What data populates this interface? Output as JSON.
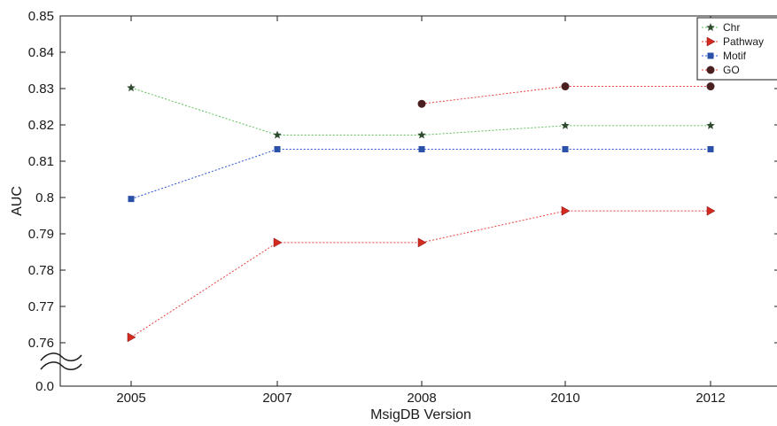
{
  "chart_data": {
    "type": "line",
    "title": "",
    "xlabel": "MsigDB Version",
    "ylabel": "AUC",
    "categories": [
      "2005",
      "2007",
      "2008",
      "2010",
      "2012"
    ],
    "y_ticks": [
      "0.85",
      "0.84",
      "0.83",
      "0.82",
      "0.81",
      "0.8",
      "0.79",
      "0.78",
      "0.77",
      "0.76"
    ],
    "y_tick_values": [
      0.85,
      0.84,
      0.83,
      0.82,
      0.81,
      0.8,
      0.79,
      0.78,
      0.77,
      0.76
    ],
    "y_break_label": "0.0",
    "ylim": [
      0.755,
      0.85
    ],
    "grid": false,
    "legend_position": "top-right",
    "series": [
      {
        "name": "Chr",
        "marker": "star",
        "color": "#5cc05c",
        "marker_color": "#2f4a2f",
        "values": [
          0.8302,
          0.8172,
          0.8172,
          0.8198,
          0.8198
        ]
      },
      {
        "name": "Pathway",
        "marker": "triangle-right",
        "color": "#e84040",
        "marker_color": "#d42a20",
        "values": [
          0.7615,
          0.7876,
          0.7876,
          0.7963,
          0.7963
        ]
      },
      {
        "name": "Motif",
        "marker": "square",
        "color": "#3050d0",
        "marker_color": "#2a50a8",
        "values": [
          0.7996,
          0.8133,
          0.8133,
          0.8133,
          0.8133
        ]
      },
      {
        "name": "GO",
        "marker": "circle",
        "color": "#e84040",
        "marker_color": "#4a1f1f",
        "values": [
          null,
          null,
          0.8258,
          0.8306,
          0.8306
        ]
      }
    ]
  }
}
